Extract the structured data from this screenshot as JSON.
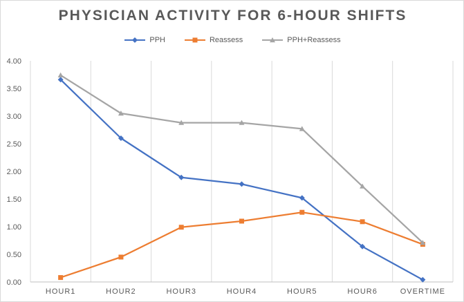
{
  "chart_data": {
    "type": "line",
    "title": "PHYSICIAN ACTIVITY FOR 6-HOUR SHIFTS",
    "xlabel": "",
    "ylabel": "",
    "ylim": [
      0,
      4
    ],
    "yticks": [
      "0.00",
      "0.50",
      "1.00",
      "1.50",
      "2.00",
      "2.50",
      "3.00",
      "3.50",
      "4.00"
    ],
    "categories": [
      "HOUR1",
      "HOUR2",
      "HOUR3",
      "HOUR4",
      "HOUR5",
      "HOUR6",
      "OVERTIME"
    ],
    "grid": "vertical",
    "legend_position": "top",
    "series": [
      {
        "name": "PPH",
        "color": "#4472C4",
        "marker": "diamond",
        "values": [
          3.66,
          2.6,
          1.89,
          1.77,
          1.52,
          0.64,
          0.04
        ]
      },
      {
        "name": "Reassess",
        "color": "#ED7D31",
        "marker": "square",
        "values": [
          0.08,
          0.45,
          0.99,
          1.1,
          1.26,
          1.09,
          0.68
        ]
      },
      {
        "name": "PPH+Reassess",
        "color": "#A5A5A5",
        "marker": "triangle",
        "values": [
          3.74,
          3.05,
          2.88,
          2.88,
          2.77,
          1.73,
          0.71
        ]
      }
    ]
  }
}
